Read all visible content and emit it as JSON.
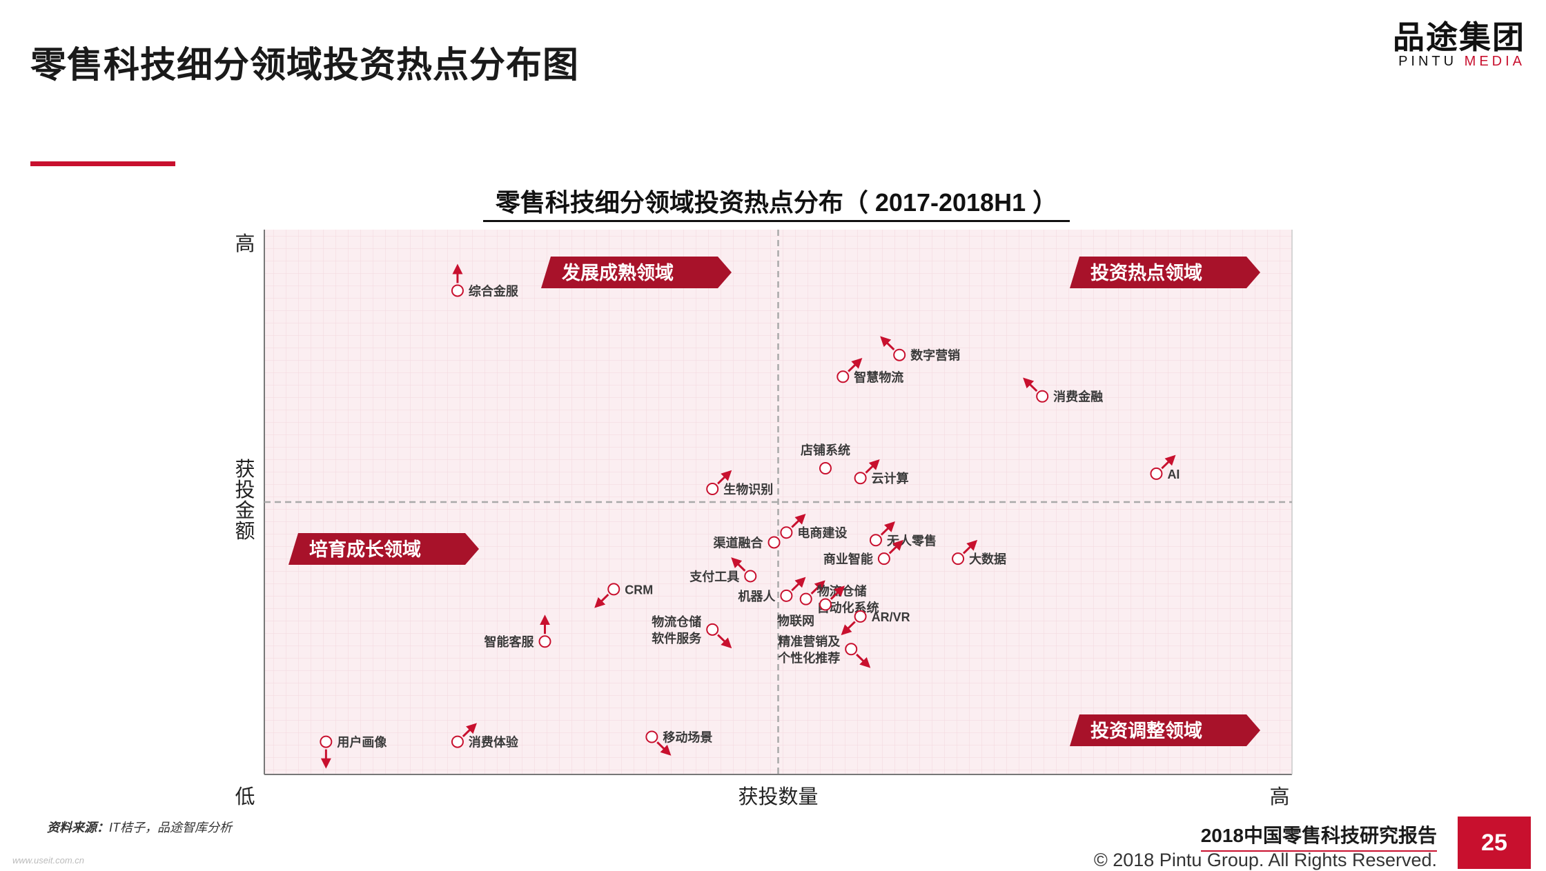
{
  "page": {
    "title": "零售科技细分领域投资热点分布图",
    "logo_main": "品途集团",
    "logo_sub_a": "PINTU ",
    "logo_sub_b": "MEDIA",
    "source_label": "资料来源：",
    "source_text": "IT桔子，品途智库分析",
    "watermark": "www.useit.com.cn",
    "report_name": "2018中国零售科技研究报告",
    "copyright": "© 2018 Pintu Group. All Rights Reserved.",
    "page_number": "25"
  },
  "colors": {
    "accent": "#c8102e",
    "banner": "#a8122a",
    "plot_bg": "#fbeef1"
  },
  "chart_data": {
    "type": "scatter",
    "title": "零售科技细分领域投资热点分布（ 2017-2018H1 ）",
    "xlabel": "获投数量",
    "ylabel": "获投金额",
    "x_low": "低",
    "x_high": "高",
    "y_high": "高",
    "xlim": [
      0,
      100
    ],
    "ylim": [
      0,
      100
    ],
    "divider_x": 50,
    "divider_y": 50,
    "quadrants": [
      {
        "label": "发展成熟领域",
        "position": "top-left"
      },
      {
        "label": "投资热点领域",
        "position": "top-right"
      },
      {
        "label": "培育成长领域",
        "position": "middle-left"
      },
      {
        "label": "投资调整领域",
        "position": "bottom-right"
      }
    ],
    "points": [
      {
        "label": "综合金服",
        "x": 18.8,
        "y": 88.8,
        "trend": "up",
        "side": "right"
      },
      {
        "label": "数字营销",
        "x": 61.8,
        "y": 77.0,
        "trend": "up-left",
        "side": "right"
      },
      {
        "label": "智慧物流",
        "x": 56.3,
        "y": 73.0,
        "trend": "up-right",
        "side": "right"
      },
      {
        "label": "消费金融",
        "x": 75.7,
        "y": 69.4,
        "trend": "up-left",
        "side": "right"
      },
      {
        "label": "店铺系统",
        "x": 54.6,
        "y": 56.2,
        "trend": "none",
        "side": "top"
      },
      {
        "label": "云计算",
        "x": 58.0,
        "y": 54.4,
        "trend": "up-right",
        "side": "right"
      },
      {
        "label": "AI",
        "x": 86.8,
        "y": 55.2,
        "trend": "up-right",
        "side": "right"
      },
      {
        "label": "生物识别",
        "x": 43.6,
        "y": 52.4,
        "trend": "up-right",
        "side": "right"
      },
      {
        "label": "电商建设",
        "x": 50.8,
        "y": 44.4,
        "trend": "up-right",
        "side": "right"
      },
      {
        "label": "渠道融合",
        "x": 49.6,
        "y": 42.6,
        "trend": "none",
        "side": "left"
      },
      {
        "label": "无人零售",
        "x": 59.5,
        "y": 43.0,
        "trend": "up-right",
        "side": "right"
      },
      {
        "label": "商业智能",
        "x": 60.3,
        "y": 39.6,
        "trend": "up-right",
        "side": "left"
      },
      {
        "label": "大数据",
        "x": 67.5,
        "y": 39.6,
        "trend": "up-right",
        "side": "right"
      },
      {
        "label": "支付工具",
        "x": 47.3,
        "y": 36.4,
        "trend": "up-left",
        "side": "left"
      },
      {
        "label": "CRM",
        "x": 34.0,
        "y": 34.0,
        "trend": "down-left",
        "side": "right"
      },
      {
        "label": "机器人",
        "x": 50.8,
        "y": 32.8,
        "trend": "up-right",
        "side": "left"
      },
      {
        "label": "物流仓储自动化系统",
        "label_lines": [
          "物流仓储",
          "自动化系统"
        ],
        "x": 52.7,
        "y": 32.2,
        "trend": "up-right",
        "side": "right"
      },
      {
        "label": "物联网",
        "x": 54.6,
        "y": 31.2,
        "trend": "up-right",
        "side": "none"
      },
      {
        "label": "AR/VR",
        "x": 58.0,
        "y": 29.0,
        "trend": "down-left",
        "side": "right"
      },
      {
        "label": "物流仓储软件服务",
        "label_lines": [
          "物流仓储",
          "软件服务"
        ],
        "x": 43.6,
        "y": 26.6,
        "trend": "down-right",
        "side": "left"
      },
      {
        "label": "智能客服",
        "x": 27.3,
        "y": 24.4,
        "trend": "up",
        "side": "left"
      },
      {
        "label": "精准营销及个性化推荐",
        "label_lines": [
          "精准营销及",
          "个性化推荐"
        ],
        "x": 57.1,
        "y": 23.0,
        "trend": "down-right",
        "side": "left"
      },
      {
        "label": "用户画像",
        "x": 6.0,
        "y": 6.0,
        "trend": "down",
        "side": "right"
      },
      {
        "label": "消费体验",
        "x": 18.8,
        "y": 6.0,
        "trend": "up-right",
        "side": "right"
      },
      {
        "label": "移动场景",
        "x": 37.7,
        "y": 6.9,
        "trend": "down-right",
        "side": "right"
      }
    ]
  }
}
